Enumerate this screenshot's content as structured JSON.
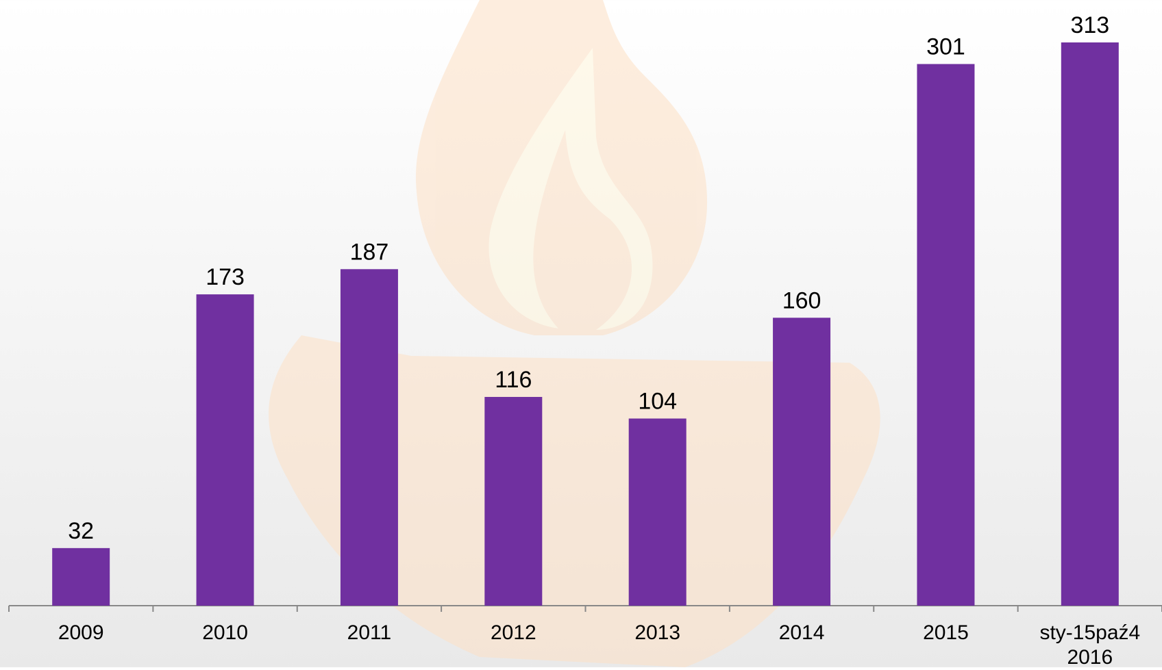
{
  "chart_data": {
    "type": "bar",
    "categories": [
      "2009",
      "2010",
      "2011",
      "2012",
      "2013",
      "2014",
      "2015",
      "sty-15paź4 2016"
    ],
    "values": [
      32,
      173,
      187,
      116,
      104,
      160,
      301,
      313
    ],
    "color": "#7030a0"
  }
}
